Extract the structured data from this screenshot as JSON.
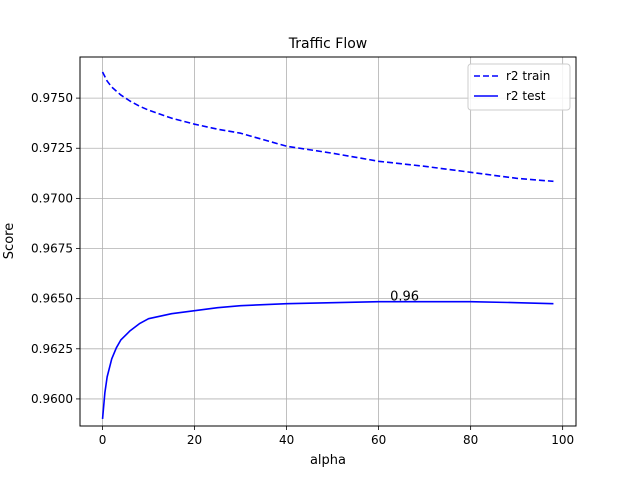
{
  "chart_data": {
    "type": "line",
    "title": "Traffic Flow",
    "xlabel": "alpha",
    "ylabel": "Score",
    "xlim": [
      -4.9,
      102.9
    ],
    "ylim": [
      0.95865,
      0.97705
    ],
    "xticks": [
      0,
      20,
      40,
      60,
      80,
      100
    ],
    "xtick_labels": [
      "0",
      "20",
      "40",
      "60",
      "80",
      "100"
    ],
    "yticks": [
      0.96,
      0.9625,
      0.965,
      0.9675,
      0.97,
      0.9725,
      0.975
    ],
    "ytick_labels": [
      "0.9600",
      "0.9625",
      "0.9650",
      "0.9675",
      "0.9700",
      "0.9725",
      "0.9750"
    ],
    "grid": true,
    "legend": "top-right",
    "series": [
      {
        "name": "r2 train",
        "style": "dashed",
        "color": "#0000ff",
        "x": [
          0,
          1,
          2,
          4,
          6,
          8,
          10,
          15,
          20,
          25,
          30,
          40,
          50,
          60,
          70,
          80,
          90,
          98
        ],
        "y": [
          0.9763,
          0.97585,
          0.97555,
          0.97515,
          0.97485,
          0.9746,
          0.9744,
          0.974,
          0.9737,
          0.97345,
          0.97325,
          0.9726,
          0.97225,
          0.97185,
          0.9716,
          0.9713,
          0.971,
          0.97085
        ]
      },
      {
        "name": "r2 test",
        "style": "solid",
        "color": "#0000ff",
        "x": [
          0,
          0.5,
          1,
          2,
          3,
          4,
          6,
          8,
          10,
          15,
          20,
          25,
          30,
          40,
          50,
          60,
          70,
          80,
          90,
          98
        ],
        "y": [
          0.959,
          0.9603,
          0.9611,
          0.962,
          0.96255,
          0.96295,
          0.9634,
          0.96375,
          0.964,
          0.96425,
          0.9644,
          0.96455,
          0.96465,
          0.96475,
          0.9648,
          0.96485,
          0.96485,
          0.96485,
          0.9648,
          0.96475
        ]
      }
    ],
    "annotations": [
      {
        "text": "0.96",
        "x": 62.5,
        "y": 0.9649
      }
    ]
  }
}
